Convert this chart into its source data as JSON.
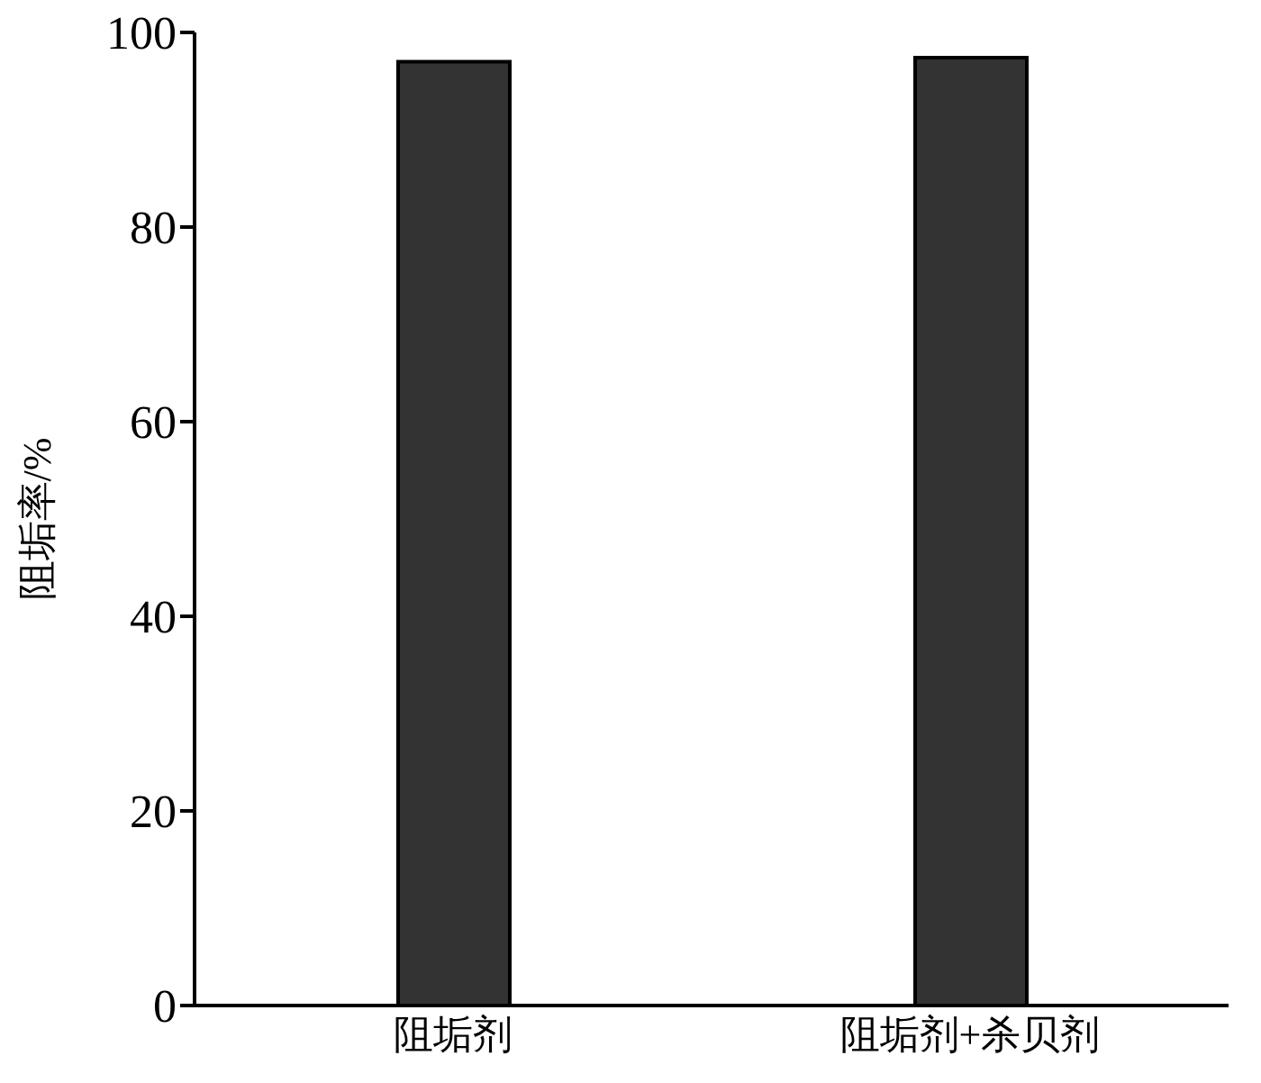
{
  "chart_data": {
    "type": "bar",
    "ylabel": "阻垢率/%",
    "categories": [
      "阻垢剂",
      "阻垢剂+杀贝剂"
    ],
    "values": [
      97.0,
      97.4
    ],
    "color": "#333333",
    "ylim": [
      0,
      100
    ],
    "yticks": [
      0,
      20,
      40,
      60,
      80,
      100
    ],
    "grid": false
  }
}
